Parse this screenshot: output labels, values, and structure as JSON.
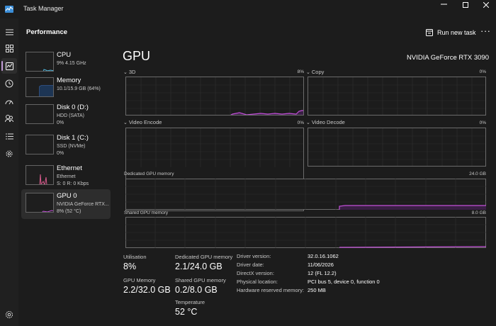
{
  "window": {
    "title": "Task Manager",
    "minimize_glyph": "—",
    "maximize_glyph": "☐",
    "close_glyph": "✕"
  },
  "header": {
    "page_title": "Performance",
    "run_new_task_label": "Run new task",
    "more_label": "···"
  },
  "nav": {
    "items": [
      "hamburger-menu-icon",
      "processes-icon",
      "performance-icon",
      "app-history-icon",
      "startup-apps-icon",
      "users-icon",
      "details-icon",
      "services-icon",
      "settings-icon"
    ],
    "active": "performance-icon",
    "accent_color": "#c49ed8"
  },
  "devices": [
    {
      "name": "CPU",
      "line1": "9% 4.15 GHz",
      "line2": ""
    },
    {
      "name": "Memory",
      "line1": "10.1/15.9 GB (64%)",
      "line2": ""
    },
    {
      "name": "Disk 0 (D:)",
      "line1": "HDD (SATA)",
      "line2": "0%"
    },
    {
      "name": "Disk 1 (C:)",
      "line1": "SSD (NVMe)",
      "line2": "0%"
    },
    {
      "name": "Ethernet",
      "line1": "Ethernet",
      "line2": "S: 0 R: 0 Kbps"
    },
    {
      "name": "GPU 0",
      "line1": "NVIDIA GeForce RTX...",
      "line2": "8% (52 °C)"
    }
  ],
  "selected_device": "GPU 0",
  "gpu": {
    "title": "GPU",
    "model": "NVIDIA GeForce RTX 3090",
    "graphs": {
      "g3d": {
        "label": "3D",
        "value": "8%"
      },
      "copy": {
        "label": "Copy",
        "value": "0%"
      },
      "video_encode": {
        "label": "Video Encode",
        "value": "0%"
      },
      "video_decode": {
        "label": "Video Decode",
        "value": "0%"
      }
    },
    "dedicated_memory": {
      "label": "Dedicated GPU memory",
      "max": "24.0 GB"
    },
    "shared_memory": {
      "label": "Shared GPU memory",
      "max": "8.0 GB"
    },
    "graph_color": "#c24fd8",
    "stats": {
      "utilisation": {
        "label": "Utilisation",
        "value": "8%"
      },
      "dedicated": {
        "label": "Dedicated GPU memory",
        "value": "2.1/24.0 GB"
      },
      "gpu_memory": {
        "label": "GPU Memory",
        "value": "2.2/32.0 GB"
      },
      "shared": {
        "label": "Shared GPU memory",
        "value": "0.2/8.0 GB"
      },
      "temperature": {
        "label": "Temperature",
        "value": "52 °C"
      }
    },
    "details": [
      {
        "key": "Driver version:",
        "value": "32.0.16.1062"
      },
      {
        "key": "Driver date:",
        "value": "11/06/2026"
      },
      {
        "key": "DirectX version:",
        "value": "12 (FL 12.2)"
      },
      {
        "key": "Physical location:",
        "value": "PCI bus 5, device 0, function 0"
      },
      {
        "key": "Hardware reserved memory:",
        "value": "250 MB"
      }
    ]
  }
}
